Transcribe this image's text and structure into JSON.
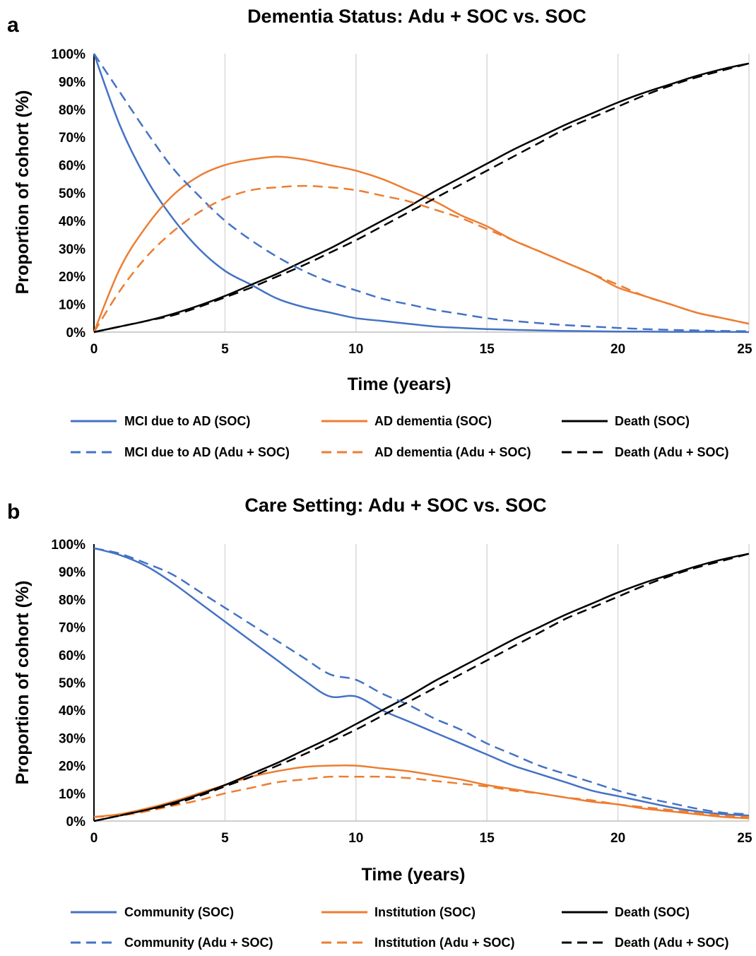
{
  "chart_data": [
    {
      "type": "line",
      "panel_label": "a",
      "title": "Dementia Status: Adu + SOC vs. SOC",
      "xlabel": "Time (years)",
      "ylabel": "Proportion of cohort (%)",
      "xlim": [
        0,
        25
      ],
      "ylim": [
        0,
        100
      ],
      "xticks": [
        "0",
        "5",
        "10",
        "15",
        "20",
        "25"
      ],
      "yticks": [
        "0%",
        "10%",
        "20%",
        "30%",
        "40%",
        "50%",
        "60%",
        "70%",
        "80%",
        "90%",
        "100%"
      ],
      "grid": "vertical",
      "legend_position": "bottom",
      "x": [
        0,
        1,
        2,
        3,
        4,
        5,
        6,
        7,
        8,
        9,
        10,
        11,
        12,
        13,
        14,
        15,
        16,
        17,
        18,
        19,
        20,
        21,
        22,
        23,
        24,
        25
      ],
      "series": [
        {
          "name": "MCI due to AD (SOC)",
          "color": "#4472C4",
          "dash": "solid",
          "values": [
            100,
            74,
            55,
            41,
            30,
            22,
            17,
            12,
            9,
            7,
            5,
            4,
            3,
            2,
            1.5,
            1.1,
            0.8,
            0.6,
            0.4,
            0.3,
            0.2,
            0.2,
            0.1,
            0.1,
            0.1,
            0
          ]
        },
        {
          "name": "AD dementia (SOC)",
          "color": "#ED7D31",
          "dash": "solid",
          "values": [
            0,
            23,
            38,
            49,
            56,
            60,
            62,
            63,
            62,
            60,
            58,
            55,
            51,
            47,
            42,
            38,
            33,
            29,
            25,
            21,
            16,
            13,
            10,
            7,
            5,
            3
          ]
        },
        {
          "name": "Death (SOC)",
          "color": "#000000",
          "dash": "solid",
          "values": [
            0,
            2,
            4,
            6.5,
            9.5,
            13,
            17,
            21,
            25.5,
            30,
            35,
            40,
            45,
            50.5,
            55.5,
            60.5,
            65.5,
            70,
            74.5,
            78.5,
            82.5,
            86,
            89,
            92,
            94.5,
            96.5
          ]
        },
        {
          "name": "MCI due to AD (Adu + SOC)",
          "color": "#4472C4",
          "dash": "dashed",
          "values": [
            100,
            86,
            72,
            59,
            49,
            40,
            33,
            27,
            22,
            18,
            15,
            12,
            10,
            8,
            6.5,
            5,
            4,
            3.2,
            2.5,
            2,
            1.5,
            1.1,
            0.8,
            0.6,
            0.4,
            0.3
          ]
        },
        {
          "name": "AD dementia (Adu + SOC)",
          "color": "#ED7D31",
          "dash": "dashed",
          "values": [
            0,
            15,
            27,
            36,
            43,
            48,
            51,
            52,
            52.5,
            52,
            51,
            49,
            47,
            44,
            41,
            37,
            33,
            29,
            25,
            21,
            17,
            13,
            10,
            7,
            5,
            3
          ]
        },
        {
          "name": "Death (Adu + SOC)",
          "color": "#000000",
          "dash": "dashed",
          "values": [
            0,
            2,
            4,
            6,
            9,
            12.5,
            16,
            20,
            24,
            28.5,
            33,
            38,
            43,
            48,
            53,
            58,
            63,
            68,
            73,
            77,
            81,
            85,
            88.5,
            91.5,
            94,
            96.5
          ]
        }
      ]
    },
    {
      "type": "line",
      "panel_label": "b",
      "title": "Care Setting: Adu + SOC vs. SOC",
      "xlabel": "Time (years)",
      "ylabel": "Proportion of cohort (%)",
      "xlim": [
        0,
        25
      ],
      "ylim": [
        0,
        100
      ],
      "xticks": [
        "0",
        "5",
        "10",
        "15",
        "20",
        "25"
      ],
      "yticks": [
        "0%",
        "10%",
        "20%",
        "30%",
        "40%",
        "50%",
        "60%",
        "70%",
        "80%",
        "90%",
        "100%"
      ],
      "grid": "vertical",
      "legend_position": "bottom",
      "x": [
        0,
        1,
        2,
        3,
        4,
        5,
        6,
        7,
        8,
        9,
        10,
        11,
        12,
        13,
        14,
        15,
        16,
        17,
        18,
        19,
        20,
        21,
        22,
        23,
        24,
        25
      ],
      "series": [
        {
          "name": "Community (SOC)",
          "color": "#4472C4",
          "dash": "solid",
          "values": [
            98.5,
            96,
            92,
            86,
            79,
            72,
            65,
            58,
            51,
            45,
            45,
            40,
            36,
            32,
            28,
            24,
            20,
            17,
            14,
            11,
            9,
            7,
            5,
            3.5,
            2.5,
            2
          ]
        },
        {
          "name": "Institution (SOC)",
          "color": "#ED7D31",
          "dash": "solid",
          "values": [
            1.5,
            2.5,
            4.5,
            7,
            10,
            13,
            16,
            18,
            19.5,
            20,
            20,
            19,
            18,
            16.5,
            15,
            13,
            11.5,
            10,
            8.5,
            7,
            6,
            4.5,
            3.5,
            2.5,
            1.5,
            1
          ]
        },
        {
          "name": "Death (SOC)",
          "color": "#000000",
          "dash": "solid",
          "values": [
            0,
            2,
            4,
            6.5,
            9.5,
            13,
            17,
            21,
            25.5,
            30,
            35,
            40,
            45,
            50.5,
            55.5,
            60.5,
            65.5,
            70,
            74.5,
            78.5,
            82.5,
            86,
            89,
            92,
            94.5,
            96.5
          ]
        },
        {
          "name": "Community (Adu + SOC)",
          "color": "#4472C4",
          "dash": "dashed",
          "values": [
            98.5,
            96.5,
            93,
            89,
            83,
            77,
            71,
            65,
            59,
            53,
            51,
            46,
            42,
            37,
            33,
            28,
            24,
            20,
            17,
            14,
            11,
            8.5,
            6.5,
            4.5,
            3,
            2.5
          ]
        },
        {
          "name": "Institution (Adu + SOC)",
          "color": "#ED7D31",
          "dash": "dashed",
          "values": [
            1.5,
            2,
            3.5,
            5.5,
            7.5,
            10,
            12,
            14,
            15,
            16,
            16,
            16,
            15.5,
            14.5,
            13.5,
            12.5,
            11,
            10,
            8.5,
            7.5,
            6,
            5,
            4,
            3,
            2,
            1.5
          ]
        },
        {
          "name": "Death (Adu + SOC)",
          "color": "#000000",
          "dash": "dashed",
          "values": [
            0,
            2,
            4,
            6,
            9,
            12.5,
            16,
            20,
            24,
            28.5,
            33,
            38,
            43,
            48,
            53,
            58,
            63,
            68,
            73,
            77,
            81,
            85,
            88.5,
            91.5,
            94,
            96.5
          ]
        }
      ]
    }
  ]
}
